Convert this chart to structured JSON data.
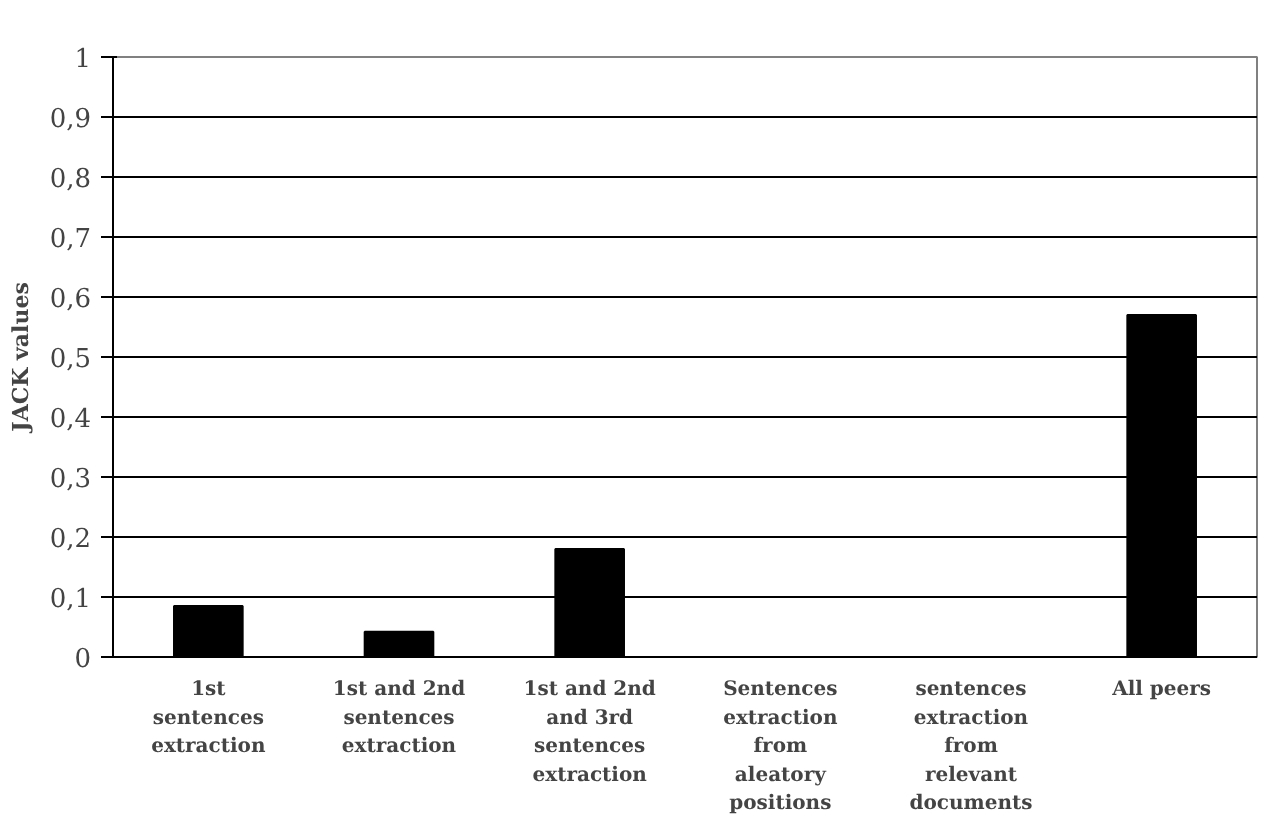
{
  "chart_data": {
    "type": "bar",
    "ylabel": "JACK values",
    "categories": [
      "1st sentences extraction",
      "1st and 2nd sentences extraction",
      "1st and 2nd and 3rd sentences extraction",
      "Sentences extraction from aleatory positions",
      "sentences extraction from relevant documents",
      "All peers"
    ],
    "values": [
      0.085,
      0.042,
      0.18,
      0,
      0,
      0.57
    ],
    "color": "#000000",
    "ylim": [
      0,
      1
    ],
    "yticks": [
      0,
      {
        "value": 0.1,
        "label": "0,1"
      },
      {
        "value": 0.2,
        "label": "0,2"
      },
      {
        "value": 0.3,
        "label": "0,3"
      },
      {
        "value": 0.4,
        "label": "0,4"
      },
      {
        "value": 0.5,
        "label": "0,5"
      },
      {
        "value": 0.6,
        "label": "0,6"
      },
      {
        "value": 0.7,
        "label": "0,7"
      },
      {
        "value": 0.8,
        "label": "0,8"
      },
      {
        "value": 0.9,
        "label": "0,9"
      },
      1
    ],
    "grid": "y"
  }
}
